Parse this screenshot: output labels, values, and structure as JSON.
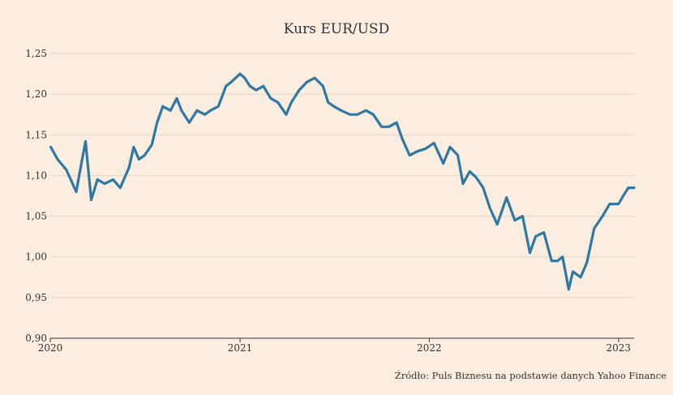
{
  "chart_data": {
    "type": "line",
    "title": "Kurs EUR/USD",
    "xlabel": "",
    "ylabel": "",
    "source": "Źródło: Puls Biznesu na podstawie danych Yahoo Finance",
    "ylim": [
      0.9,
      1.25
    ],
    "yticks": [
      0.9,
      0.95,
      1.0,
      1.05,
      1.1,
      1.15,
      1.2,
      1.25
    ],
    "ytick_labels": [
      "0,90",
      "0,95",
      "1,00",
      "1,05",
      "1,10",
      "1,15",
      "1,20",
      "1,25"
    ],
    "xlim": [
      "2020-01-01",
      "2023-01-31"
    ],
    "xticks": [
      "2020-01-01",
      "2021-01-01",
      "2022-01-01",
      "2023-01-01"
    ],
    "xtick_labels": [
      "2020",
      "2021",
      "2022",
      "2023"
    ],
    "grid": "horizontal",
    "line_color": "#2e78a3",
    "series": [
      {
        "name": "",
        "x": [
          "2020-01-02",
          "2020-01-15",
          "2020-02-01",
          "2020-02-20",
          "2020-03-01",
          "2020-03-09",
          "2020-03-20",
          "2020-04-01",
          "2020-04-15",
          "2020-05-01",
          "2020-05-15",
          "2020-06-01",
          "2020-06-10",
          "2020-06-20",
          "2020-07-01",
          "2020-07-15",
          "2020-07-25",
          "2020-08-05",
          "2020-08-20",
          "2020-09-01",
          "2020-09-10",
          "2020-09-25",
          "2020-10-10",
          "2020-10-25",
          "2020-11-05",
          "2020-11-20",
          "2020-12-05",
          "2020-12-15",
          "2021-01-01",
          "2021-01-10",
          "2021-01-20",
          "2021-02-01",
          "2021-02-15",
          "2021-03-01",
          "2021-03-15",
          "2021-03-31",
          "2021-04-10",
          "2021-04-25",
          "2021-05-10",
          "2021-05-25",
          "2021-06-10",
          "2021-06-20",
          "2021-07-01",
          "2021-07-15",
          "2021-08-01",
          "2021-08-15",
          "2021-09-01",
          "2021-09-15",
          "2021-10-01",
          "2021-10-15",
          "2021-10-30",
          "2021-11-10",
          "2021-11-24",
          "2021-12-10",
          "2021-12-25",
          "2022-01-10",
          "2022-01-28",
          "2022-02-10",
          "2022-02-25",
          "2022-03-07",
          "2022-03-20",
          "2022-04-01",
          "2022-04-15",
          "2022-04-28",
          "2022-05-12",
          "2022-05-30",
          "2022-06-15",
          "2022-06-30",
          "2022-07-14",
          "2022-07-25",
          "2022-08-10",
          "2022-08-25",
          "2022-09-05",
          "2022-09-15",
          "2022-09-27",
          "2022-10-05",
          "2022-10-20",
          "2022-11-01",
          "2022-11-15",
          "2022-12-01",
          "2022-12-15",
          "2023-01-01",
          "2023-01-10",
          "2023-01-20",
          "2023-01-31"
        ],
        "values": [
          1.135,
          1.12,
          1.107,
          1.08,
          1.115,
          1.142,
          1.07,
          1.095,
          1.09,
          1.095,
          1.085,
          1.11,
          1.135,
          1.12,
          1.125,
          1.138,
          1.165,
          1.185,
          1.18,
          1.195,
          1.18,
          1.165,
          1.18,
          1.175,
          1.18,
          1.185,
          1.21,
          1.215,
          1.225,
          1.22,
          1.21,
          1.205,
          1.21,
          1.195,
          1.19,
          1.175,
          1.19,
          1.205,
          1.215,
          1.22,
          1.21,
          1.19,
          1.185,
          1.18,
          1.175,
          1.175,
          1.18,
          1.175,
          1.16,
          1.16,
          1.165,
          1.145,
          1.125,
          1.13,
          1.133,
          1.14,
          1.115,
          1.135,
          1.125,
          1.09,
          1.105,
          1.098,
          1.085,
          1.06,
          1.04,
          1.073,
          1.045,
          1.05,
          1.005,
          1.025,
          1.03,
          0.995,
          0.995,
          1.0,
          0.96,
          0.982,
          0.975,
          0.993,
          1.035,
          1.05,
          1.065,
          1.065,
          1.075,
          1.085,
          1.085
        ]
      }
    ]
  }
}
